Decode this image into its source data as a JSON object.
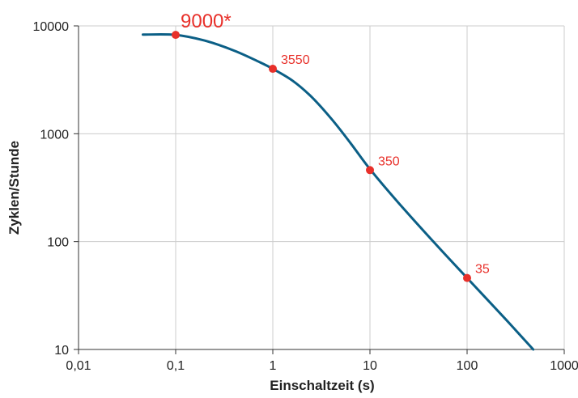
{
  "colors": {
    "curve": "#0b5f86",
    "point": "#e8302a",
    "grid": "#cccccc",
    "axis": "#333333"
  },
  "chart_data": {
    "type": "line",
    "title": "",
    "xlabel": "Einschaltzeit (s)",
    "ylabel": "Zyklen/Stunde",
    "xscale": "log",
    "yscale": "log",
    "xlim": [
      0.01,
      1000
    ],
    "ylim": [
      10,
      10000
    ],
    "grid": true,
    "x_ticks": [
      {
        "value": 0.01,
        "label": "0,01"
      },
      {
        "value": 0.1,
        "label": "0,1"
      },
      {
        "value": 1,
        "label": "1"
      },
      {
        "value": 10,
        "label": "10"
      },
      {
        "value": 100,
        "label": "100"
      },
      {
        "value": 1000,
        "label": "1000"
      }
    ],
    "y_ticks": [
      {
        "value": 10,
        "label": "10"
      },
      {
        "value": 100,
        "label": "100"
      },
      {
        "value": 1000,
        "label": "1000"
      },
      {
        "value": 10000,
        "label": "10000"
      }
    ],
    "series": [
      {
        "curve": [
          [
            0.046,
            8300
          ],
          [
            0.1,
            8250
          ],
          [
            0.2,
            7300
          ],
          [
            0.4,
            5900
          ],
          [
            0.7,
            4700
          ],
          [
            1,
            4000
          ],
          [
            1.6,
            3100
          ],
          [
            2.5,
            2200
          ],
          [
            4,
            1380
          ],
          [
            6.3,
            820
          ],
          [
            10,
            470
          ],
          [
            20,
            225
          ],
          [
            50,
            90
          ],
          [
            100,
            46
          ],
          [
            250,
            19
          ],
          [
            480,
            10
          ]
        ]
      }
    ],
    "points": [
      {
        "x": 0.1,
        "y": 8250,
        "label": "9000*",
        "big": true
      },
      {
        "x": 1,
        "y": 4000,
        "label": "3550",
        "big": false
      },
      {
        "x": 10,
        "y": 460,
        "label": "350",
        "big": false
      },
      {
        "x": 100,
        "y": 46,
        "label": "35",
        "big": false
      }
    ]
  }
}
